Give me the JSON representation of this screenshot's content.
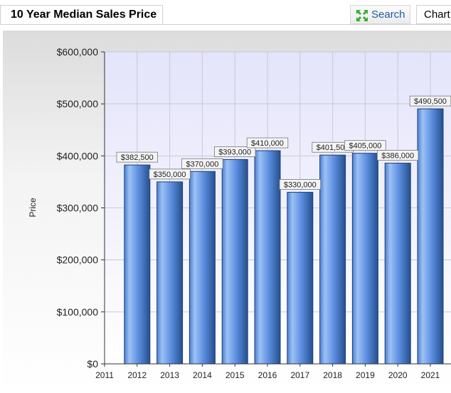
{
  "header": {
    "title": "10 Year Median Sales Price",
    "search_label": "Search",
    "chart_tab_label": "Chart"
  },
  "colors": {
    "bar_light": "#8fb8f2",
    "bar_dark": "#2e5fa8",
    "search_text": "#1e5b9e",
    "search_icon": "#3aaa35"
  },
  "chart_data": {
    "type": "bar",
    "ylabel": "Price",
    "xlabel": "",
    "grid": true,
    "ylim": [
      0,
      600000
    ],
    "y_ticks": [
      "$0",
      "$100,000",
      "$200,000",
      "$300,000",
      "$400,000",
      "$500,000",
      "$600,000"
    ],
    "x_ticks": [
      "2011",
      "2012",
      "2013",
      "2014",
      "2015",
      "2016",
      "2017",
      "2018",
      "2019",
      "2020",
      "2021"
    ],
    "categories": [
      "2012",
      "2013",
      "2014",
      "2015",
      "2016",
      "2017",
      "2018",
      "2019",
      "2020",
      "2021"
    ],
    "values": [
      382500,
      350000,
      370000,
      393000,
      410000,
      330000,
      401500,
      405000,
      386000,
      490500
    ],
    "data_labels": [
      "$382,500",
      "$350,000",
      "$370,000",
      "$393,000",
      "$410,000",
      "$330,000",
      "$401,500",
      "$405,000",
      "$386,000",
      "$490,500"
    ]
  }
}
